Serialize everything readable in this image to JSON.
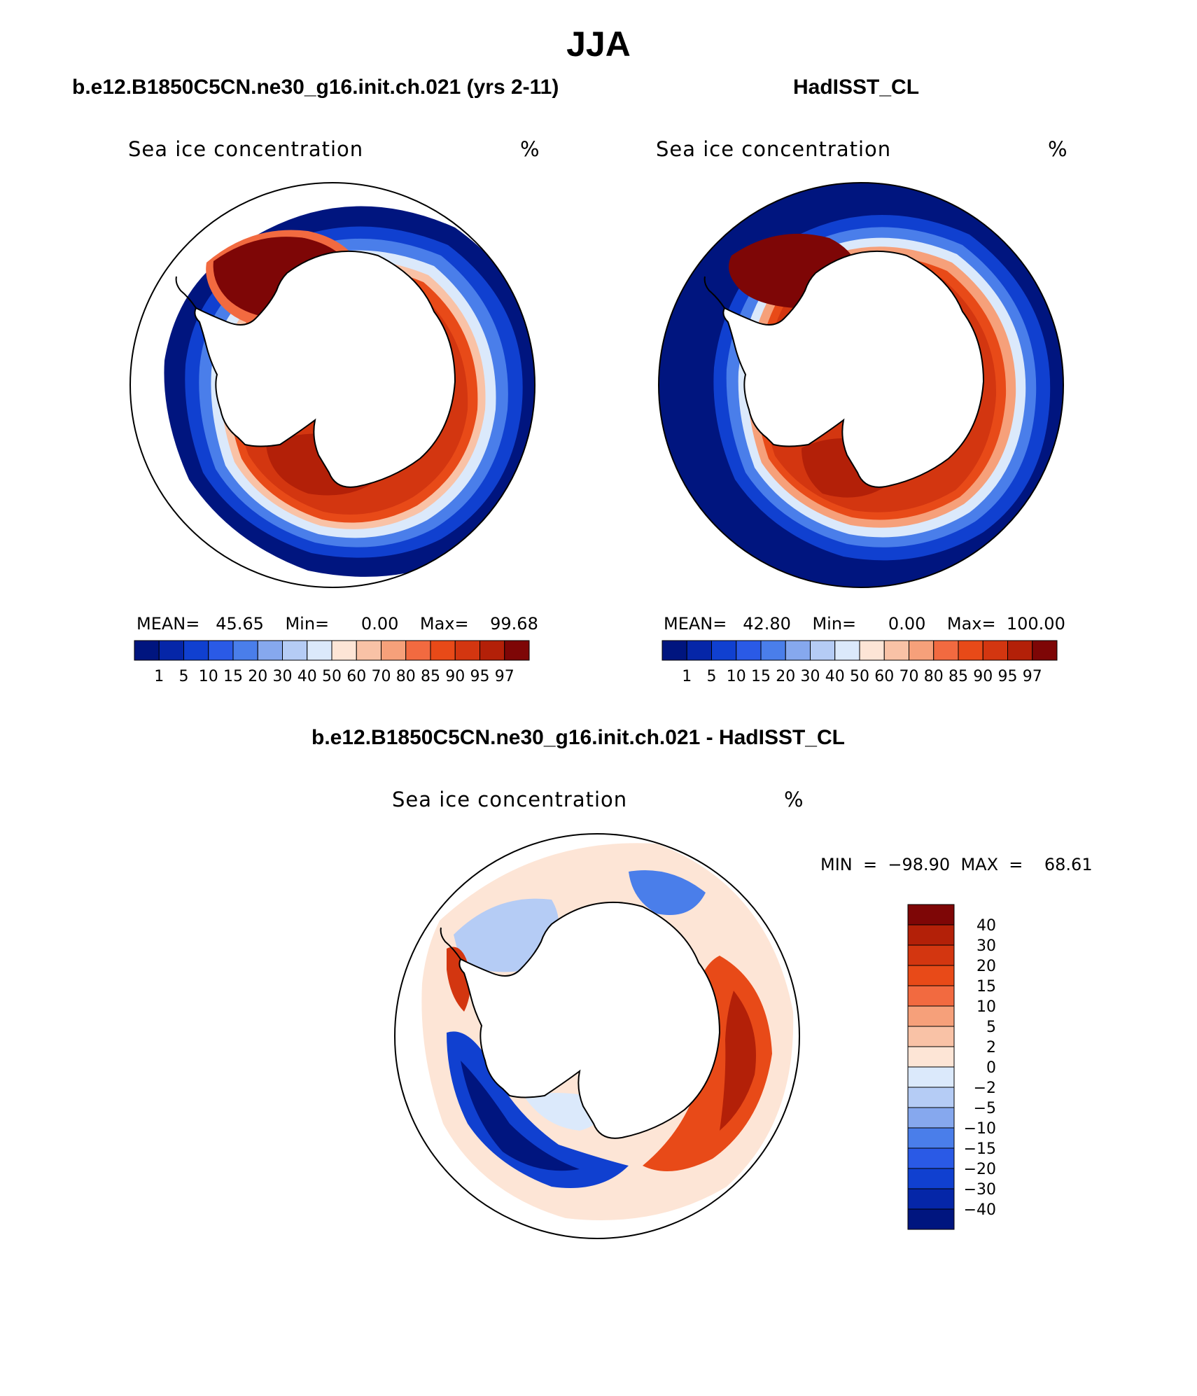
{
  "figure": {
    "season_title": "JJA"
  },
  "panels": {
    "model": {
      "title": "b.e12.B1850C5CN.ne30_g16.init.ch.021 (yrs 2-11)",
      "variable": "Sea ice concentration",
      "units": "%",
      "stats": "MEAN=   45.65    Min=      0.00    Max=    99.68"
    },
    "obs": {
      "title": "HadISST_CL",
      "variable": "Sea ice concentration",
      "units": "%",
      "stats": "MEAN=   42.80    Min=      0.00    Max=  100.00"
    },
    "diff": {
      "title": "b.e12.B1850C5CN.ne30_g16.init.ch.021 - HadISST_CL",
      "variable": "Sea ice concentration",
      "units": "%",
      "stats": "MIN  =  −98.90  MAX  =    68.61"
    }
  },
  "colorbars": {
    "concentration": {
      "levels": [
        "1",
        "5",
        "10",
        "15",
        "20",
        "30",
        "40",
        "50",
        "60",
        "70",
        "80",
        "85",
        "90",
        "95",
        "97"
      ],
      "colors": [
        "#00157f",
        "#0526a8",
        "#1040d0",
        "#2a5ae6",
        "#4a7eea",
        "#86a8ee",
        "#b5ccf5",
        "#dbe9fb",
        "#fde5d6",
        "#f9c2a6",
        "#f6a07a",
        "#f26a40",
        "#e84a18",
        "#d33610",
        "#b32008",
        "#7e0606"
      ]
    },
    "difference": {
      "levels": [
        "40",
        "30",
        "20",
        "15",
        "10",
        "5",
        "2",
        "0",
        "−2",
        "−5",
        "−10",
        "−15",
        "−20",
        "−30",
        "−40"
      ],
      "colors": [
        "#7e0606",
        "#b32008",
        "#d33610",
        "#e84a18",
        "#f26a40",
        "#f6a07a",
        "#f9c2a6",
        "#fde5d6",
        "#dbe9fb",
        "#b5ccf5",
        "#86a8ee",
        "#4a7eea",
        "#2a5ae6",
        "#1040d0",
        "#0526a8",
        "#00157f"
      ]
    }
  }
}
